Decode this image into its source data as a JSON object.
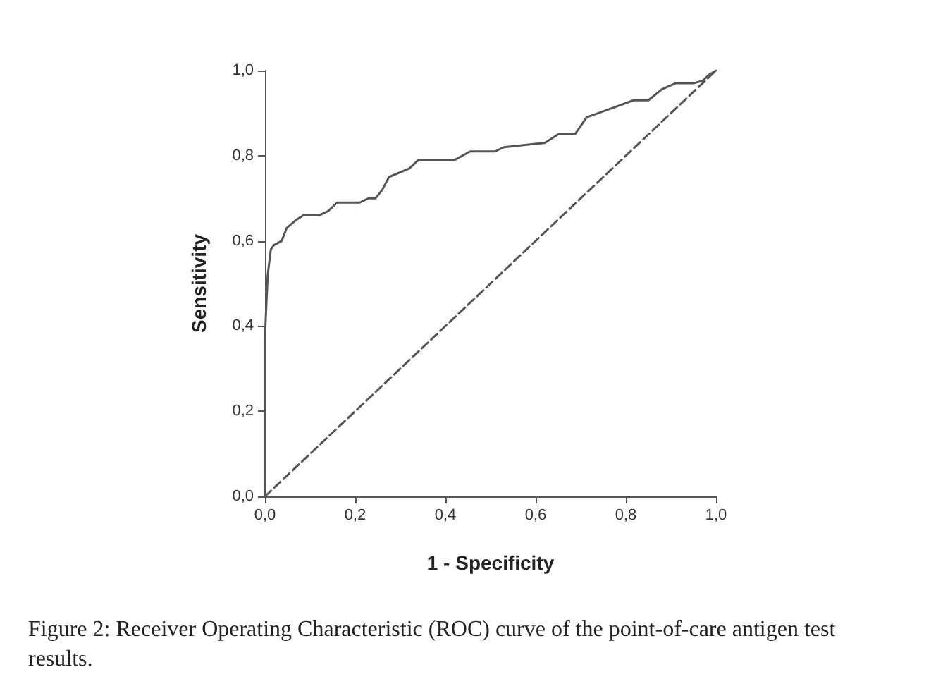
{
  "chart_data": {
    "type": "line",
    "xlabel": "1 - Specificity",
    "ylabel": "Sensitivity",
    "xlim": [
      0,
      1
    ],
    "ylim": [
      0,
      1
    ],
    "xticks": [
      {
        "value": 0,
        "label": "0,0"
      },
      {
        "value": 0.2,
        "label": "0,2"
      },
      {
        "value": 0.4,
        "label": "0,4"
      },
      {
        "value": 0.6,
        "label": "0,6"
      },
      {
        "value": 0.8,
        "label": "0,8"
      },
      {
        "value": 1,
        "label": "1,0"
      }
    ],
    "yticks": [
      {
        "value": 0,
        "label": "0,0"
      },
      {
        "value": 0.2,
        "label": "0,2"
      },
      {
        "value": 0.4,
        "label": "0,4"
      },
      {
        "value": 0.6,
        "label": "0,6"
      },
      {
        "value": 0.8,
        "label": "0,8"
      },
      {
        "value": 1,
        "label": "1,0"
      }
    ],
    "grid": false,
    "marker": "none",
    "series": [
      {
        "color": "#555555",
        "line_style": "solid",
        "x": [
          0,
          0,
          0.003,
          0.006,
          0.013,
          0.02,
          0.037,
          0.048,
          0.07,
          0.085,
          0.12,
          0.14,
          0.16,
          0.21,
          0.23,
          0.245,
          0.26,
          0.275,
          0.32,
          0.34,
          0.38,
          0.42,
          0.455,
          0.51,
          0.53,
          0.62,
          0.65,
          0.687,
          0.713,
          0.765,
          0.817,
          0.85,
          0.88,
          0.91,
          0.95,
          0.97,
          0.984,
          1
        ],
        "values": [
          0,
          0.38,
          0.45,
          0.52,
          0.58,
          0.59,
          0.6,
          0.63,
          0.65,
          0.66,
          0.66,
          0.67,
          0.69,
          0.69,
          0.7,
          0.7,
          0.72,
          0.75,
          0.77,
          0.79,
          0.79,
          0.79,
          0.81,
          0.81,
          0.82,
          0.83,
          0.85,
          0.85,
          0.89,
          0.91,
          0.93,
          0.93,
          0.956,
          0.97,
          0.97,
          0.976,
          0.99,
          1
        ]
      },
      {
        "color": "#555555",
        "line_style": "dashed",
        "x": [
          0,
          1
        ],
        "values": [
          0,
          1
        ]
      }
    ],
    "annotations": [
      "Figure 2: Receiver Operating Characteristic (ROC) curve of the point-of-care antigen test results."
    ]
  }
}
